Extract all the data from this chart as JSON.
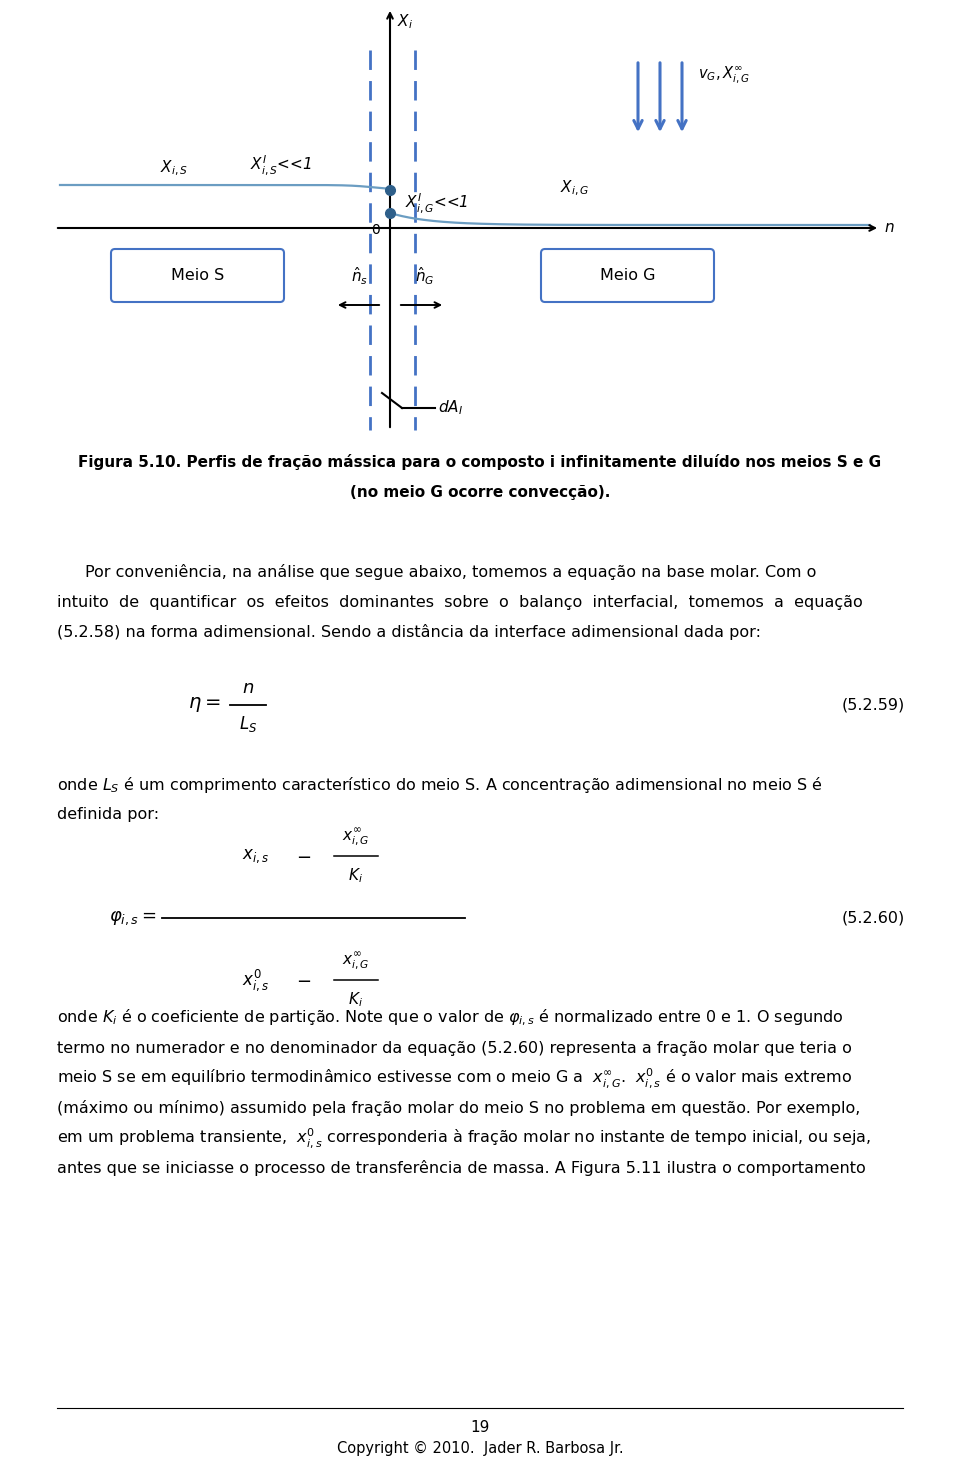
{
  "bg_color": "#ffffff",
  "fig_width": 9.6,
  "fig_height": 14.68,
  "dpi": 100,
  "arrow_color": "#4472C4",
  "line_color": "#6B9DC2",
  "dot_color": "#2E5F8A",
  "box_color": "#4472C4",
  "figure_caption_line1": "Figura 5.10. Perfis de fração mássica para o composto i infinitamente diluído nos meios S e G",
  "figure_caption_line2": "(no meio G ocorre convecção).",
  "para1_indent": "    Por conveniência, na análise que segue abaixo, tomemos a equação na base molar. Com o",
  "para1_line2": "intuito  de  quantificar  os  efeitos  dominantes  sobre  o  balanço  interfacial,  tomemos  a  equação",
  "para1_line3": "(5.2.58) na forma adimensional. Sendo a distância da interface adimensional dada por:",
  "eq1_label": "(5.2.59)",
  "eq2_label": "(5.2.60)",
  "para2_line1": "onde $L_S$ é um comprimento característico do meio S. A concentração adimensional no meio S é",
  "para2_line2": "definida por:",
  "para3_l1": "onde $K_i$ é o coeficiente de partição. Note que o valor de $\\varphi_{i,s}$ é normalizado entre 0 e 1. O segundo",
  "para3_l2": "termo no numerador e no denominador da equação (5.2.60) representa a fração molar que teria o",
  "para3_l3": "meio S se em equilíbrio termodinâmico estivesse com o meio G a  $x^{\\infty}_{i,G}$.  $x^0_{i,s}$ é o valor mais extremo",
  "para3_l4": "(máximo ou mínimo) assumido pela fração molar do meio S no problema em questão. Por exemplo,",
  "para3_l5": "em um problema transiente,  $x^0_{i,s}$ corresponderia à fração molar no instante de tempo inicial, ou seja,",
  "para3_l6": "antes que se iniciasse o processo de transferência de massa. A Figura 5.11 ilustra o comportamento",
  "footer_num": "19",
  "footer_copy": "Copyright © 2010.  Jader R. Barbosa Jr."
}
